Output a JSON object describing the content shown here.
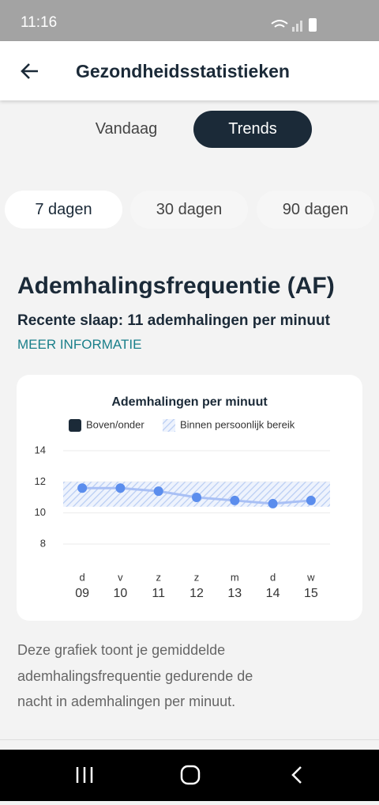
{
  "status_bar": {
    "time": "11:16"
  },
  "header": {
    "title": "Gezondheidsstatistieken"
  },
  "view_tabs": [
    "Vandaag",
    "Trends"
  ],
  "range_tabs": [
    "7 dagen",
    "30 dagen",
    "90 dagen"
  ],
  "section": {
    "title": "Ademhalingsfrequentie (AF)",
    "subtitle": "Recente slaap: 11 ademhalingen per minuut",
    "link": "MEER INFORMATIE"
  },
  "chart": {
    "type": "line",
    "title": "Ademhalingen per minuut",
    "legend": [
      {
        "label": "Boven/onder",
        "color": "#1b2a38"
      },
      {
        "label": "Binnen persoonlijk bereik",
        "color": "#b9cdf3"
      }
    ],
    "categories": [
      "d",
      "v",
      "z",
      "z",
      "m",
      "d",
      "w"
    ],
    "dates": [
      "09",
      "10",
      "11",
      "12",
      "13",
      "14",
      "15"
    ],
    "values": [
      11.6,
      11.6,
      11.4,
      11.0,
      10.8,
      10.6,
      10.8
    ],
    "range": [
      10.4,
      12
    ],
    "ylim": [
      8,
      14
    ],
    "yticks": [
      8,
      10,
      12,
      14
    ],
    "grid": true,
    "line_color": "#a9c0f5",
    "point_color": "#5b8ded",
    "range_color": "#b9cdf3"
  },
  "footnote": "Deze grafiek toont je gemiddelde ademhalingsfrequentie gedurende de nacht in ademhalingen per minuut."
}
